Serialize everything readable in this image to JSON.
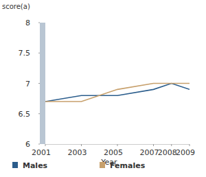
{
  "chart_data": {
    "type": "line",
    "y_label": "score(a)",
    "x_label": "Year",
    "x": [
      2001,
      2003,
      2005,
      2007,
      2008,
      2009
    ],
    "series": [
      {
        "name": "Males",
        "color": "#2b5d8c",
        "values": [
          6.7,
          6.8,
          6.8,
          6.9,
          7.0,
          6.9
        ]
      },
      {
        "name": "Females",
        "color": "#c7a06c",
        "values": [
          6.7,
          6.7,
          6.9,
          7.0,
          7.0,
          7.0
        ]
      }
    ],
    "xlim": [
      2001,
      2009
    ],
    "xticks": [
      2001,
      2003,
      2005,
      2007,
      2008,
      2009
    ],
    "ylim": [
      6,
      8
    ],
    "yticks": [
      6,
      {
        "value": 6.5,
        "label": "6.5"
      },
      7,
      {
        "value": 7.5,
        "label": "7.5"
      },
      8
    ],
    "grid": false,
    "legend": "bottom"
  }
}
